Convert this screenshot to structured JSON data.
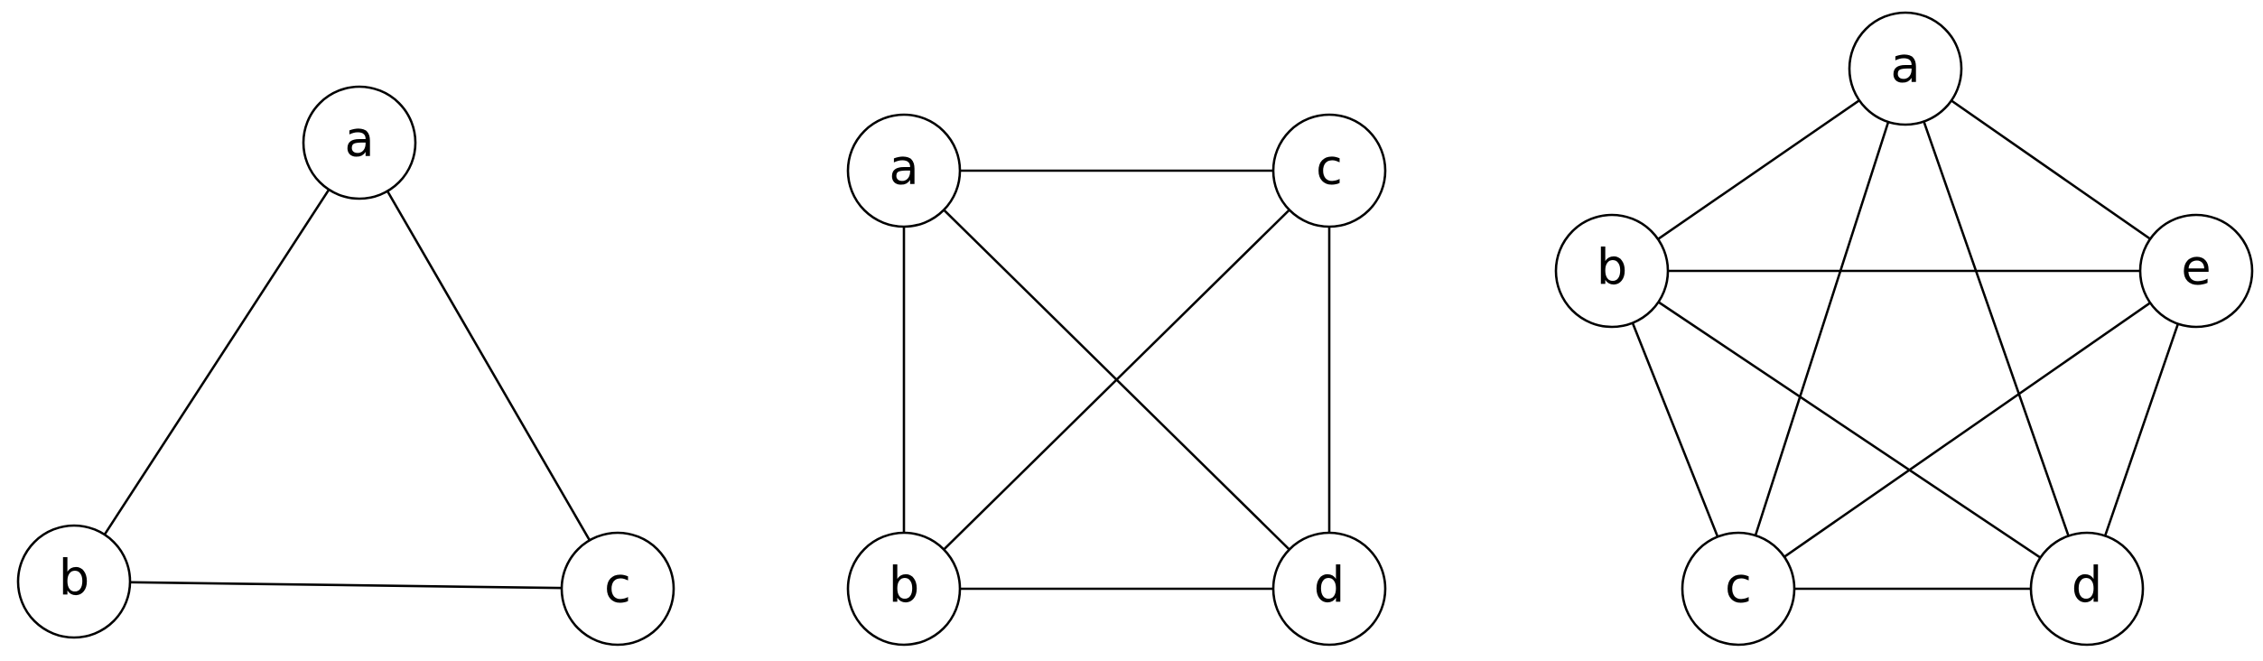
{
  "graphs": [
    {
      "name": "complete-graph-3",
      "nodes": [
        {
          "id": "a",
          "label": "a"
        },
        {
          "id": "b",
          "label": "b"
        },
        {
          "id": "c",
          "label": "c"
        }
      ],
      "edges": [
        [
          "a",
          "b"
        ],
        [
          "a",
          "c"
        ],
        [
          "b",
          "c"
        ]
      ]
    },
    {
      "name": "complete-graph-4",
      "nodes": [
        {
          "id": "a",
          "label": "a"
        },
        {
          "id": "c",
          "label": "c"
        },
        {
          "id": "b",
          "label": "b"
        },
        {
          "id": "d",
          "label": "d"
        }
      ],
      "edges": [
        [
          "a",
          "c"
        ],
        [
          "a",
          "b"
        ],
        [
          "a",
          "d"
        ],
        [
          "c",
          "b"
        ],
        [
          "c",
          "d"
        ],
        [
          "b",
          "d"
        ]
      ]
    },
    {
      "name": "complete-graph-5",
      "nodes": [
        {
          "id": "a",
          "label": "a"
        },
        {
          "id": "b",
          "label": "b"
        },
        {
          "id": "e",
          "label": "e"
        },
        {
          "id": "c",
          "label": "c"
        },
        {
          "id": "d",
          "label": "d"
        }
      ],
      "edges": [
        [
          "a",
          "b"
        ],
        [
          "a",
          "e"
        ],
        [
          "a",
          "c"
        ],
        [
          "a",
          "d"
        ],
        [
          "b",
          "e"
        ],
        [
          "b",
          "c"
        ],
        [
          "b",
          "d"
        ],
        [
          "e",
          "c"
        ],
        [
          "e",
          "d"
        ],
        [
          "c",
          "d"
        ]
      ]
    }
  ]
}
